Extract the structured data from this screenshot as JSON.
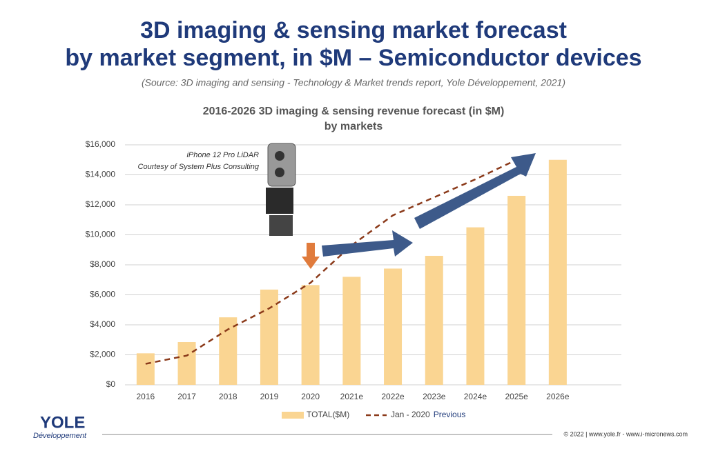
{
  "slide": {
    "title_lines": [
      "3D imaging & sensing market forecast",
      "by market segment, in $M – Semiconductor devices"
    ],
    "source": "(Source: 3D imaging and sensing - Technology & Market trends report, Yole Développement, 2021)",
    "image_caption": [
      "iPhone 12 Pro LiDAR",
      "Courtesy of System Plus Consulting"
    ],
    "logo": "YOLE",
    "logo_sub": "Développement",
    "footer": "© 2022 | www.yole.fr - www.i-micronews.com"
  },
  "chart_data": {
    "type": "bar_line",
    "title": [
      "2016-2026 3D imaging & sensing revenue forecast (in $M)",
      "by markets"
    ],
    "categories": [
      "2016",
      "2017",
      "2018",
      "2019",
      "2020",
      "2021e",
      "2022e",
      "2023e",
      "2024e",
      "2025e",
      "2026e"
    ],
    "series": [
      {
        "name": "TOTAL($M)",
        "color": "#fad592",
        "values": [
          2100,
          2850,
          4500,
          6350,
          6650,
          7200,
          7750,
          8600,
          10500,
          12600,
          15000
        ]
      },
      {
        "name": "Jan - 2020",
        "legend_note": "Previous",
        "color": "#8b3a1a",
        "dashed": true,
        "values": [
          1400,
          1950,
          3700,
          5100,
          6800,
          9300,
          11300,
          12500,
          13700,
          15000,
          null
        ]
      }
    ],
    "ylim": [
      0,
      16000
    ],
    "yticks": [
      {
        "value": 0,
        "label": "$0"
      },
      {
        "value": 2000,
        "label": "$2,000"
      },
      {
        "value": 4000,
        "label": "$4,000"
      },
      {
        "value": 6000,
        "label": "$6,000"
      },
      {
        "value": 8000,
        "label": "$8,000"
      },
      {
        "value": 10000,
        "label": "$10,000"
      },
      {
        "value": 12000,
        "label": "$12,000"
      },
      {
        "value": 14000,
        "label": "$14,000"
      },
      {
        "value": 16000,
        "label": "$16,000"
      }
    ],
    "grid": true
  }
}
